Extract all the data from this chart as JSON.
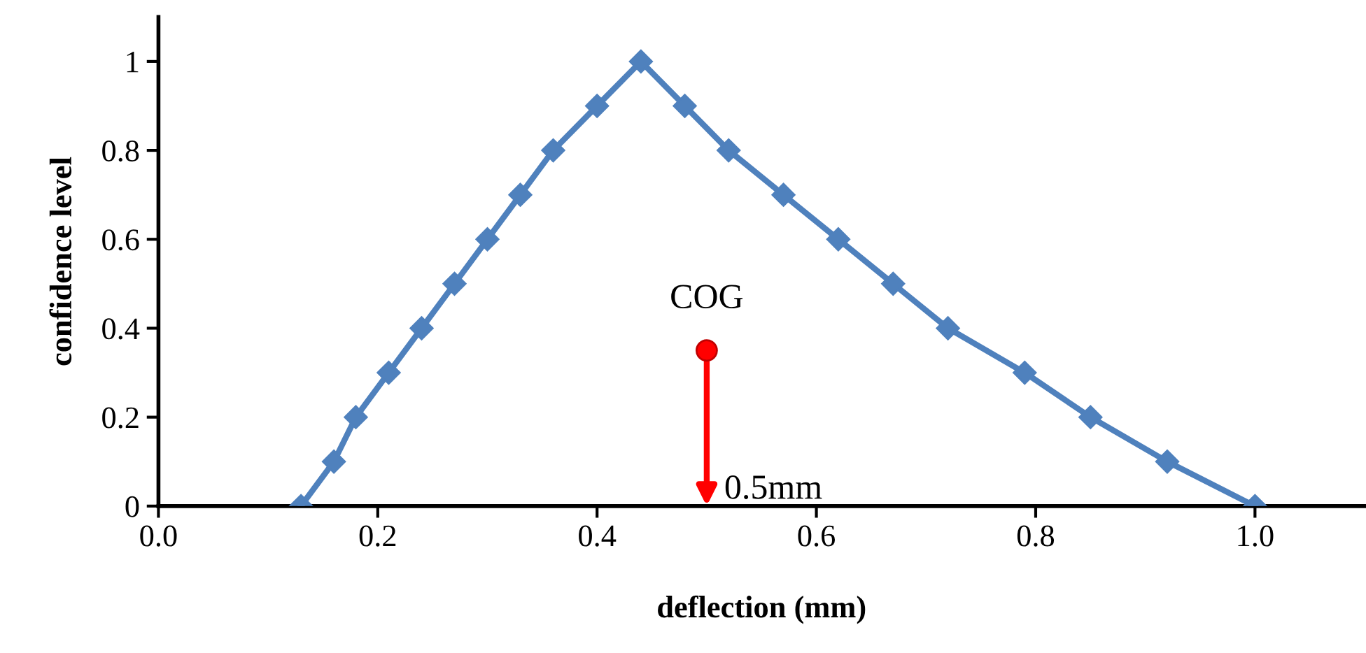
{
  "chart_data": {
    "type": "line",
    "xlabel": "deflection (mm)",
    "ylabel": "confidence level",
    "xlim": [
      0,
      1.1
    ],
    "ylim": [
      0,
      1.1
    ],
    "xticks": [
      {
        "value": 0,
        "label": "0.0"
      },
      {
        "value": 0.2,
        "label": "0.2"
      },
      {
        "value": 0.4,
        "label": "0.4"
      },
      {
        "value": 0.6,
        "label": "0.6"
      },
      {
        "value": 0.8,
        "label": "0.8"
      },
      {
        "value": 1.0,
        "label": "1.0"
      }
    ],
    "yticks": [
      0,
      0.2,
      0.4,
      0.6,
      0.8,
      1
    ],
    "grid": false,
    "legend": false,
    "marker": "diamond",
    "line_style": "solid",
    "series": [
      {
        "color": "#4f81bd",
        "x": [
          0.13,
          0.16,
          0.18,
          0.21,
          0.24,
          0.27,
          0.3,
          0.33,
          0.36,
          0.4,
          0.44,
          0.48,
          0.52,
          0.57,
          0.62,
          0.67,
          0.72,
          0.79,
          0.85,
          0.92,
          1.0
        ],
        "values": [
          0,
          0.1,
          0.2,
          0.3,
          0.4,
          0.5,
          0.6,
          0.7,
          0.8,
          0.9,
          1,
          0.9,
          0.8,
          0.7,
          0.6,
          0.5,
          0.4,
          0.3,
          0.2,
          0.1,
          0
        ]
      },
      {
        "type": "scatter",
        "marker": "circle",
        "color": "#ff0000",
        "x": [
          0.5
        ],
        "values": [
          0.35
        ]
      }
    ],
    "annotations": [
      {
        "text": "COG",
        "x": 0.5,
        "y": 0.35
      },
      "0.5mm"
    ]
  }
}
